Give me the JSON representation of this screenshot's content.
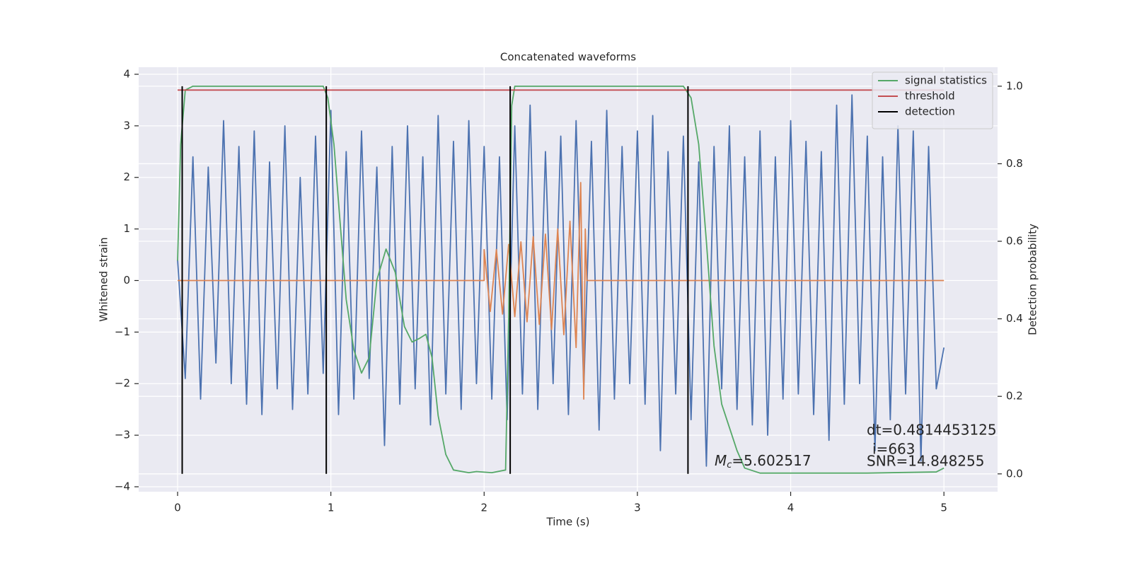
{
  "chart_data": {
    "type": "line",
    "title": "Concatenated waveforms",
    "xlabel": "Time (s)",
    "ylabel": "Whitened strain",
    "y2label": "Detection probability",
    "xlim": [
      -0.254,
      5.35
    ],
    "ylim": [
      -4.096,
      4.137
    ],
    "y2lim": [
      -0.046,
      1.049
    ],
    "xticks": [
      0,
      1,
      2,
      3,
      4,
      5
    ],
    "yticks": [
      {
        "value": -4,
        "label": "−4"
      },
      {
        "value": -3,
        "label": "−3"
      },
      {
        "value": -2,
        "label": "−2"
      },
      {
        "value": -1,
        "label": "−1"
      },
      0,
      1,
      2,
      3,
      4
    ],
    "y2ticks": [
      {
        "value": 0,
        "label": "0.0"
      },
      {
        "value": 0.2,
        "label": "0.2"
      },
      {
        "value": 0.4,
        "label": "0.4"
      },
      {
        "value": 0.6,
        "label": "0.6"
      },
      {
        "value": 0.8,
        "label": "0.8"
      },
      {
        "value": 1,
        "label": "1.0"
      }
    ],
    "grid": true,
    "legend": "upper right",
    "series": [
      {
        "color": "#4c72b0",
        "axis": "y",
        "x": [
          0,
          0.05,
          0.1,
          0.15,
          0.2,
          0.25,
          0.3,
          0.35,
          0.4,
          0.45,
          0.5,
          0.55,
          0.6,
          0.65,
          0.7,
          0.75,
          0.8,
          0.85,
          0.9,
          0.95,
          1,
          1.05,
          1.1,
          1.15,
          1.2,
          1.25,
          1.3,
          1.35,
          1.4,
          1.45,
          1.5,
          1.55,
          1.6,
          1.65,
          1.7,
          1.75,
          1.8,
          1.85,
          1.9,
          1.95,
          2,
          2.05,
          2.1,
          2.15,
          2.2,
          2.25,
          2.3,
          2.35,
          2.4,
          2.45,
          2.5,
          2.55,
          2.6,
          2.65,
          2.7,
          2.75,
          2.8,
          2.85,
          2.9,
          2.95,
          3,
          3.05,
          3.1,
          3.15,
          3.2,
          3.25,
          3.3,
          3.35,
          3.4,
          3.45,
          3.5,
          3.55,
          3.6,
          3.65,
          3.7,
          3.75,
          3.8,
          3.85,
          3.9,
          3.95,
          4,
          4.05,
          4.1,
          4.15,
          4.2,
          4.25,
          4.3,
          4.35,
          4.4,
          4.45,
          4.5,
          4.55,
          4.6,
          4.65,
          4.7,
          4.75,
          4.8,
          4.85,
          4.9,
          4.95,
          5
        ],
        "values": [
          0.4,
          -1.9,
          2.4,
          -2.3,
          2.2,
          -1.6,
          3.1,
          -2.0,
          2.6,
          -2.4,
          2.9,
          -2.6,
          2.3,
          -2.1,
          3.0,
          -2.5,
          2.0,
          -2.2,
          2.8,
          -1.8,
          3.3,
          -2.6,
          2.5,
          -2.3,
          2.9,
          -1.9,
          2.2,
          -3.2,
          2.6,
          -2.4,
          3.0,
          -2.1,
          2.4,
          -2.8,
          3.2,
          -2.2,
          2.7,
          -2.5,
          3.1,
          -2.0,
          2.6,
          -2.3,
          2.4,
          -2.7,
          3.0,
          -2.2,
          3.4,
          -2.5,
          2.5,
          -2.0,
          2.8,
          -2.6,
          3.1,
          -2.1,
          2.7,
          -2.9,
          3.3,
          -2.3,
          2.6,
          -2.0,
          2.9,
          -2.4,
          3.2,
          -3.3,
          2.5,
          -2.2,
          2.8,
          -2.7,
          2.3,
          -3.6,
          2.6,
          -2.1,
          3.0,
          -2.5,
          2.4,
          -2.8,
          2.9,
          -3.0,
          2.4,
          -2.3,
          3.1,
          -2.2,
          2.7,
          -2.6,
          2.5,
          -3.1,
          3.4,
          -2.4,
          3.6,
          -2.0,
          2.8,
          -3.3,
          2.4,
          -2.7,
          3.0,
          -2.2,
          2.9,
          -3.5,
          2.6,
          -2.1,
          -1.3
        ]
      },
      {
        "color": "#dd8452",
        "axis": "y",
        "x": [
          0,
          2.0,
          2.0,
          2.04,
          2.08,
          2.12,
          2.16,
          2.2,
          2.24,
          2.28,
          2.32,
          2.36,
          2.4,
          2.44,
          2.48,
          2.52,
          2.56,
          2.6,
          2.63,
          2.65,
          2.66,
          2.67,
          5.0
        ],
        "values": [
          0,
          0,
          0.6,
          -0.6,
          0.6,
          -0.65,
          0.7,
          -0.7,
          0.75,
          -0.8,
          0.85,
          -0.85,
          0.9,
          -0.95,
          1.0,
          -1.05,
          1.15,
          -1.3,
          1.9,
          -2.3,
          1.0,
          0,
          0
        ]
      },
      {
        "name": "signal statistics",
        "color": "#55a868",
        "axis": "y2",
        "x": [
          0,
          0.02,
          0.05,
          0.1,
          0.5,
          0.95,
          0.98,
          1.02,
          1.06,
          1.1,
          1.15,
          1.2,
          1.25,
          1.3,
          1.36,
          1.42,
          1.48,
          1.53,
          1.58,
          1.62,
          1.66,
          1.7,
          1.75,
          1.8,
          1.9,
          1.95,
          2.05,
          2.14,
          2.16,
          2.18,
          2.2,
          2.5,
          3.3,
          3.35,
          3.4,
          3.45,
          3.5,
          3.55,
          3.6,
          3.65,
          3.7,
          3.8,
          4.5,
          4.95,
          5.0
        ],
        "values": [
          0.55,
          0.85,
          0.99,
          1.0,
          1.0,
          1.0,
          0.97,
          0.85,
          0.65,
          0.45,
          0.32,
          0.26,
          0.3,
          0.5,
          0.58,
          0.52,
          0.38,
          0.34,
          0.35,
          0.36,
          0.3,
          0.15,
          0.05,
          0.01,
          0.003,
          0.006,
          0.003,
          0.01,
          0.4,
          0.95,
          1.0,
          1.0,
          1.0,
          0.97,
          0.85,
          0.6,
          0.33,
          0.18,
          0.12,
          0.06,
          0.015,
          0.002,
          0.002,
          0.005,
          0.015
        ]
      },
      {
        "name": "threshold",
        "color": "#c44e52",
        "axis": "y2",
        "x": [
          0,
          5
        ],
        "values": [
          0.99,
          0.99
        ]
      }
    ],
    "vlines": {
      "name": "detection",
      "color": "#000000",
      "axis": "y2",
      "x": [
        0.03,
        0.97,
        2.17,
        3.33
      ],
      "from": 0,
      "to": 1
    },
    "annotations": {
      "chirp_mass": {
        "symbol": "M",
        "subscript": "c",
        "text": "=5.602517"
      },
      "dt": "dt=0.4814453125",
      "index": "i=663",
      "snr": "SNR=14.848255"
    }
  }
}
